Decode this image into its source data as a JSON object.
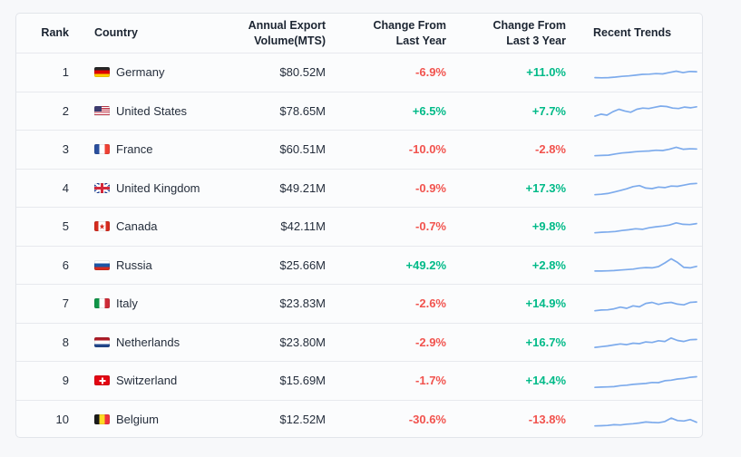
{
  "colors": {
    "positive": "#00ba88",
    "negative": "#f1534e",
    "sparkline": "#7dabec"
  },
  "table": {
    "columns": [
      {
        "key": "rank",
        "label": "Rank"
      },
      {
        "key": "country",
        "label": "Country"
      },
      {
        "key": "volume",
        "label": "Annual Export Volume(MTS)"
      },
      {
        "key": "change_last_year",
        "label": "Change From Last Year"
      },
      {
        "key": "change_last_3_year",
        "label": "Change From Last 3 Year"
      },
      {
        "key": "trend",
        "label": "Recent Trends"
      }
    ],
    "rows": [
      {
        "rank": "1",
        "country": "Germany",
        "flag": "de",
        "volume": "$80.52M",
        "change_last_year": "-6.9%",
        "change_last_3_year": "+11.0%",
        "trend": [
          20,
          19,
          20,
          22,
          25,
          27,
          30,
          33,
          34,
          36,
          35,
          41,
          46,
          40,
          45,
          44
        ]
      },
      {
        "rank": "2",
        "country": "United States",
        "flag": "us",
        "volume": "$78.65M",
        "change_last_year": "+6.5%",
        "change_last_3_year": "+7.7%",
        "trend": [
          18,
          26,
          22,
          36,
          46,
          39,
          34,
          46,
          51,
          49,
          54,
          59,
          57,
          51,
          49,
          55,
          52,
          56
        ]
      },
      {
        "rank": "3",
        "country": "France",
        "flag": "fr",
        "volume": "$60.51M",
        "change_last_year": "-10.0%",
        "change_last_3_year": "-2.8%",
        "trend": [
          16,
          17,
          18,
          23,
          27,
          29,
          32,
          34,
          35,
          38,
          37,
          42,
          50,
          42,
          44,
          43
        ]
      },
      {
        "rank": "4",
        "country": "United Kingdom",
        "flag": "gb",
        "volume": "$49.21M",
        "change_last_year": "-0.9%",
        "change_last_3_year": "+17.3%",
        "trend": [
          12,
          14,
          17,
          23,
          29,
          36,
          45,
          49,
          39,
          37,
          43,
          41,
          47,
          46,
          51,
          56,
          58
        ]
      },
      {
        "rank": "5",
        "country": "Canada",
        "flag": "ca",
        "volume": "$42.11M",
        "change_last_year": "-0.7%",
        "change_last_3_year": "+9.8%",
        "trend": [
          16,
          18,
          19,
          21,
          25,
          28,
          32,
          30,
          36,
          40,
          43,
          47,
          56,
          50,
          49,
          53
        ]
      },
      {
        "rank": "6",
        "country": "Russia",
        "flag": "ru",
        "volume": "$25.66M",
        "change_last_year": "+49.2%",
        "change_last_3_year": "+2.8%",
        "trend": [
          15,
          15,
          16,
          17,
          19,
          21,
          23,
          27,
          29,
          28,
          33,
          48,
          65,
          50,
          30,
          28,
          34
        ]
      },
      {
        "rank": "7",
        "country": "Italy",
        "flag": "it",
        "volume": "$23.83M",
        "change_last_year": "-2.6%",
        "change_last_3_year": "+14.9%",
        "trend": [
          12,
          15,
          16,
          20,
          27,
          22,
          32,
          28,
          42,
          46,
          38,
          44,
          46,
          39,
          36,
          46,
          48
        ]
      },
      {
        "rank": "8",
        "country": "Netherlands",
        "flag": "nl",
        "volume": "$23.80M",
        "change_last_year": "-2.9%",
        "change_last_3_year": "+16.7%",
        "trend": [
          18,
          21,
          24,
          28,
          32,
          29,
          35,
          33,
          40,
          38,
          45,
          42,
          56,
          46,
          42,
          49,
          50
        ]
      },
      {
        "rank": "9",
        "country": "Switzerland",
        "flag": "ch",
        "volume": "$15.69M",
        "change_last_year": "-1.7%",
        "change_last_3_year": "+14.4%",
        "trend": [
          14,
          15,
          16,
          17,
          21,
          23,
          26,
          28,
          30,
          34,
          33,
          41,
          43,
          48,
          50,
          55,
          57
        ]
      },
      {
        "rank": "10",
        "country": "Belgium",
        "flag": "be",
        "volume": "$12.52M",
        "change_last_year": "-30.6%",
        "change_last_3_year": "-13.8%",
        "trend": [
          12,
          13,
          14,
          17,
          16,
          19,
          21,
          24,
          28,
          26,
          25,
          30,
          44,
          34,
          32,
          38,
          27
        ]
      }
    ]
  }
}
